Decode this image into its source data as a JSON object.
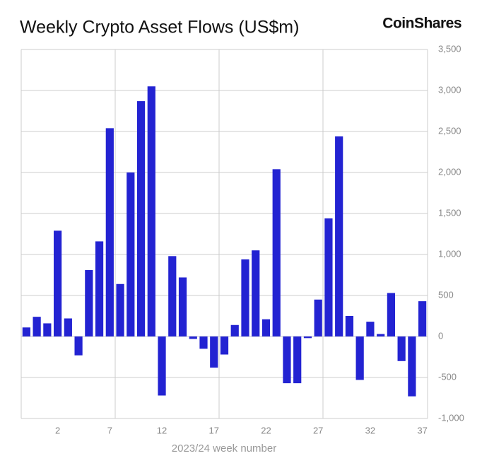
{
  "chart_data": {
    "type": "bar",
    "title": "Weekly Crypto Asset Flows (US$m)",
    "brand": "CoinShares",
    "x_label": "2023/24 week number",
    "categories": [
      null,
      null,
      null,
      "2",
      null,
      null,
      null,
      null,
      "7",
      null,
      null,
      null,
      null,
      "12",
      null,
      null,
      null,
      null,
      "17",
      null,
      null,
      null,
      null,
      "22",
      null,
      null,
      null,
      null,
      "27",
      null,
      null,
      null,
      null,
      "32",
      null,
      null,
      null,
      null,
      "37"
    ],
    "values": [
      110,
      240,
      160,
      1290,
      220,
      -230,
      810,
      1160,
      2540,
      640,
      2000,
      2870,
      3050,
      -720,
      980,
      720,
      -30,
      -150,
      -380,
      -220,
      140,
      940,
      1050,
      210,
      2040,
      -570,
      -570,
      -20,
      450,
      1440,
      2440,
      250,
      -530,
      180,
      30,
      530,
      -300,
      -730,
      430
    ],
    "color": "#2323d2",
    "ylim": [
      -1000,
      3500
    ],
    "yticks": [
      {
        "value": -1000,
        "label": "-1,000"
      },
      -500,
      0,
      500,
      {
        "value": 1000,
        "label": "1,000"
      },
      {
        "value": 1500,
        "label": "1,500"
      },
      {
        "value": 2000,
        "label": "2,000"
      },
      {
        "value": 2500,
        "label": "2,500"
      },
      {
        "value": 3000,
        "label": "3,000"
      },
      {
        "value": 3500,
        "label": "3,500"
      }
    ],
    "grid": true
  }
}
